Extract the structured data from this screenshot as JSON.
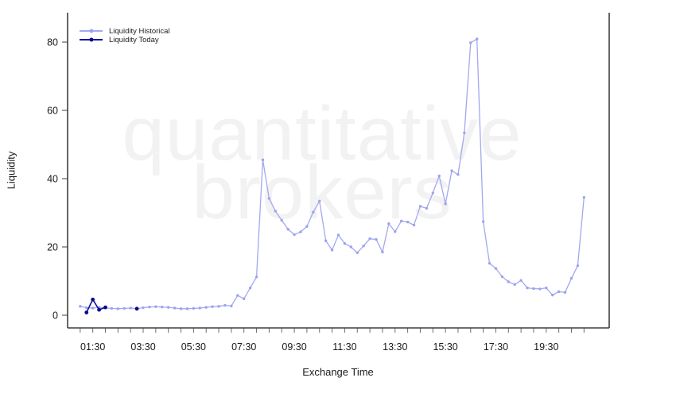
{
  "watermark": {
    "line1": "quantitative",
    "line2": "brokers",
    "color": "#f2f2f2"
  },
  "legend": {
    "items": [
      {
        "label": "Liquidity Historical",
        "color": "#a3a8ef",
        "dot_color": "#9da3ec"
      },
      {
        "label": "Liquidity Today",
        "color": "#0d0d99",
        "dot_color": "#08088a"
      }
    ]
  },
  "axes": {
    "x_label": "Exchange Time",
    "y_label": "Liquidity",
    "x_tick_labels": [
      "01:30",
      "03:30",
      "05:30",
      "07:30",
      "09:30",
      "11:30",
      "13:30",
      "15:30",
      "17:30",
      "19:30"
    ],
    "x_minor_ticks_every_minutes": 30,
    "x_minor_tick_start": "01:00",
    "x_minor_tick_end": "21:00",
    "y_ticks": [
      0,
      20,
      40,
      60,
      80
    ],
    "axis_color": "#3f3f3f",
    "x_tick_color": "#6e6e6e",
    "y_tick_color": "#3f3f3f",
    "label_color": "#1a1a1a"
  },
  "chart_data": {
    "type": "line",
    "title": "",
    "xlabel": "Exchange Time",
    "ylabel": "Liquidity",
    "ylim": [
      0,
      84
    ],
    "xlim_hours": [
      0.5,
      22.0
    ],
    "grid": false,
    "legend_position": "top-left",
    "series": [
      {
        "name": "Liquidity Historical",
        "color": "#a3a8ef",
        "marker_color": "#9da3ec",
        "start": "01:00",
        "interval_minutes": 15,
        "values": [
          2.6,
          2.2,
          2.1,
          2.3,
          2.1,
          2.0,
          1.9,
          2.0,
          2.1,
          1.9,
          2.2,
          2.4,
          2.5,
          2.4,
          2.3,
          2.1,
          1.9,
          1.9,
          2.0,
          2.1,
          2.3,
          2.5,
          2.6,
          2.9,
          2.7,
          5.8,
          4.8,
          8.0,
          11.2,
          45.5,
          34.2,
          30.5,
          27.8,
          25.2,
          23.6,
          24.4,
          26.0,
          30.2,
          33.4,
          21.8,
          19.1,
          23.5,
          21.0,
          20.0,
          18.3,
          20.3,
          22.4,
          22.2,
          18.5,
          26.8,
          24.5,
          27.6,
          27.3,
          26.4,
          31.9,
          31.3,
          35.8,
          40.8,
          32.6,
          42.3,
          41.2,
          53.4,
          79.8,
          80.9,
          27.4,
          15.2,
          13.7,
          11.3,
          9.8,
          9.0,
          10.2,
          8.0,
          7.8,
          7.7,
          8.0,
          5.9,
          6.9,
          6.7,
          10.8,
          14.5,
          34.5
        ]
      },
      {
        "name": "Liquidity Today",
        "color": "#0d0d99",
        "marker_color": "#08088a",
        "points": [
          [
            "01:15",
            0.8
          ],
          [
            "01:30",
            4.6
          ],
          [
            "01:45",
            1.6
          ],
          [
            "02:00",
            2.3
          ]
        ],
        "isolated_points": [
          [
            "03:15",
            1.9
          ]
        ]
      }
    ]
  }
}
